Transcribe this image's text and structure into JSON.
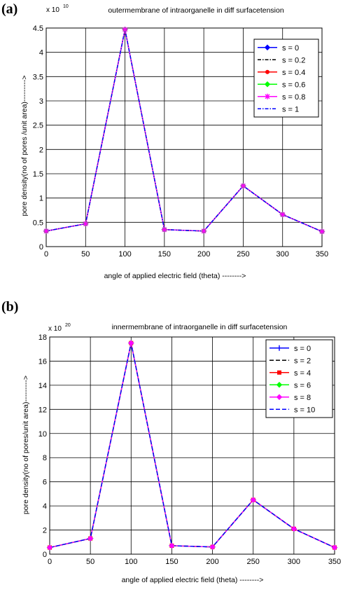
{
  "chart_data": [
    {
      "panel": "(a)",
      "type": "line",
      "title": "outermembrane of intraorganelle in diff surfacetension",
      "xlabel": "angle of applied electric field (theta) -------->",
      "ylabel": "pore density(no of pores /unit area)--------->",
      "exponent_base": "x 10",
      "exponent_power": "10",
      "xlim": [
        0,
        350
      ],
      "ylim": [
        0,
        4.5
      ],
      "xticks": [
        "0",
        "50",
        "100",
        "150",
        "200",
        "250",
        "300",
        "350"
      ],
      "yticks": [
        "0",
        "0.5",
        "1",
        "1.5",
        "2",
        "2.5",
        "3",
        "3.5",
        "4",
        "4.5"
      ],
      "grid": true,
      "legend_position": "top-right",
      "x": [
        0,
        50,
        100,
        150,
        200,
        250,
        300,
        350
      ],
      "series": [
        {
          "name": "s = 0",
          "color": "#0000ff",
          "line": "solid",
          "marker": "diamond",
          "values": [
            0.32,
            0.47,
            4.47,
            0.35,
            0.32,
            1.25,
            0.66,
            0.31
          ]
        },
        {
          "name": "s = 0.2",
          "color": "#000000",
          "line": "dashdot",
          "marker": "none",
          "values": [
            0.32,
            0.47,
            4.47,
            0.35,
            0.32,
            1.25,
            0.66,
            0.31
          ]
        },
        {
          "name": "s = 0.4",
          "color": "#ff0000",
          "line": "solid",
          "marker": "dot",
          "values": [
            0.32,
            0.47,
            4.47,
            0.35,
            0.32,
            1.25,
            0.66,
            0.31
          ]
        },
        {
          "name": "s = 0.6",
          "color": "#00ff00",
          "line": "solid",
          "marker": "diamond",
          "values": [
            0.32,
            0.47,
            4.47,
            0.35,
            0.32,
            1.25,
            0.66,
            0.31
          ]
        },
        {
          "name": "s = 0.8",
          "color": "#ff00ff",
          "line": "solid",
          "marker": "star",
          "values": [
            0.32,
            0.47,
            4.47,
            0.35,
            0.32,
            1.25,
            0.66,
            0.31
          ]
        },
        {
          "name": "s = 1",
          "color": "#0000ff",
          "line": "dashdot",
          "marker": "none",
          "values": [
            0.32,
            0.47,
            4.47,
            0.35,
            0.32,
            1.25,
            0.66,
            0.31
          ]
        }
      ]
    },
    {
      "panel": "(b)",
      "type": "line",
      "title": "innermembrane of intraorganelle in diff surfacetension",
      "xlabel": "angle of applied electric field (theta) -------->",
      "ylabel": "pore density(no of pores/unit area)--------->",
      "exponent_base": "x 10",
      "exponent_power": "20",
      "xlim": [
        0,
        350
      ],
      "ylim": [
        0,
        18
      ],
      "xticks": [
        "0",
        "50",
        "100",
        "150",
        "200",
        "250",
        "300",
        "350"
      ],
      "yticks": [
        "0",
        "2",
        "4",
        "6",
        "8",
        "10",
        "12",
        "14",
        "16",
        "18"
      ],
      "grid": true,
      "legend_position": "top-right",
      "x": [
        0,
        50,
        100,
        150,
        200,
        250,
        300,
        350
      ],
      "series": [
        {
          "name": "s = 0",
          "color": "#0000ff",
          "line": "solid",
          "marker": "plus",
          "values": [
            0.55,
            1.3,
            17.5,
            0.7,
            0.6,
            4.5,
            2.1,
            0.55
          ]
        },
        {
          "name": "s = 2",
          "color": "#000000",
          "line": "dashed",
          "marker": "none",
          "values": [
            0.55,
            1.3,
            17.5,
            0.7,
            0.6,
            4.5,
            2.1,
            0.55
          ]
        },
        {
          "name": "s = 4",
          "color": "#ff0000",
          "line": "solid",
          "marker": "square",
          "values": [
            0.55,
            1.3,
            17.5,
            0.7,
            0.6,
            4.5,
            2.1,
            0.55
          ]
        },
        {
          "name": "s = 6",
          "color": "#00ff00",
          "line": "solid",
          "marker": "diamond",
          "values": [
            0.55,
            1.3,
            17.5,
            0.7,
            0.6,
            4.5,
            2.1,
            0.55
          ]
        },
        {
          "name": "s = 8",
          "color": "#ff00ff",
          "line": "solid",
          "marker": "diamond",
          "values": [
            0.55,
            1.3,
            17.5,
            0.7,
            0.6,
            4.5,
            2.1,
            0.55
          ]
        },
        {
          "name": "s = 10",
          "color": "#0000ff",
          "line": "dashed",
          "marker": "none",
          "values": [
            0.55,
            1.3,
            17.5,
            0.7,
            0.6,
            4.5,
            2.1,
            0.55
          ]
        }
      ]
    }
  ]
}
